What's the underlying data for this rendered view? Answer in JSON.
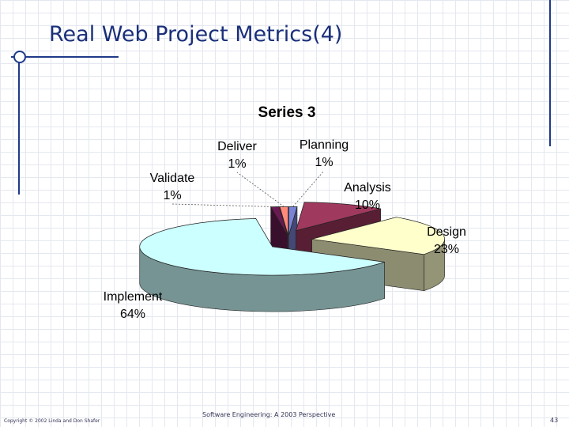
{
  "slide": {
    "title": "Real Web Project Metrics(4)",
    "footer_left": "Copyright © 2002 Linda and Don Shafer",
    "footer_center": "Software Engineering: A 2003 Perspective",
    "page_number": "43"
  },
  "chart_data": {
    "type": "pie",
    "title": "Series 3",
    "three_d": true,
    "exploded": true,
    "legend": "none",
    "slices": [
      {
        "label": "Planning",
        "value": 1,
        "value_label": "1%",
        "color": "#7b83d6"
      },
      {
        "label": "Analysis",
        "value": 10,
        "value_label": "10%",
        "color": "#a0395e"
      },
      {
        "label": "Design",
        "value": 23,
        "value_label": "23%",
        "color": "#ffffcc"
      },
      {
        "label": "Implement",
        "value": 64,
        "value_label": "64%",
        "color": "#ccffff"
      },
      {
        "label": "Validate",
        "value": 1,
        "value_label": "1%",
        "color": "#6a1a52"
      },
      {
        "label": "Deliver",
        "value": 1,
        "value_label": "1%",
        "color": "#ff8a7a"
      }
    ]
  }
}
